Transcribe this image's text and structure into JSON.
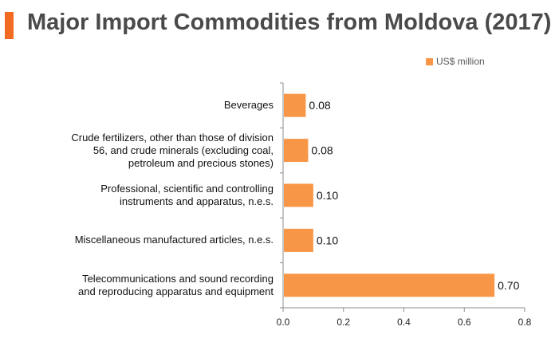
{
  "title": "Major Import Commodities from Moldova (2017)",
  "colors": {
    "accent": "#f26b21",
    "bar": "#f79646",
    "axis": "#8c8c8c"
  },
  "chart_data": {
    "type": "bar",
    "orientation": "horizontal",
    "title": "Major Import Commodities from Moldova (2017)",
    "categories": [
      "Beverages",
      "Crude fertilizers, other than those of division 56, and crude minerals (excluding coal, petroleum and precious stones)",
      "Professional, scientific and controlling instruments and apparatus, n.e.s.",
      "Miscellaneous manufactured articles, n.e.s.",
      "Telecommunications and sound recording and reproducing apparatus and equipment"
    ],
    "category_lines": [
      [
        "Beverages"
      ],
      [
        "Crude fertilizers, other than those of division",
        "56, and crude minerals (excluding coal,",
        "petroleum and precious stones)"
      ],
      [
        "Professional, scientific and controlling",
        "instruments and apparatus, n.e.s."
      ],
      [
        "Miscellaneous manufactured articles, n.e.s."
      ],
      [
        "Telecommunications and sound recording",
        "and reproducing apparatus and equipment"
      ]
    ],
    "series": [
      {
        "name": "US$ million",
        "values": [
          0.075,
          0.083,
          0.1,
          0.1,
          0.7
        ]
      }
    ],
    "data_labels": [
      "0.08",
      "0.08",
      "0.10",
      "0.10",
      "0.70"
    ],
    "xticks": [
      "0.0",
      "0.2",
      "0.4",
      "0.6",
      "0.8"
    ],
    "xlim": [
      0,
      0.8
    ],
    "legend_position": "top-right",
    "grid": false
  }
}
